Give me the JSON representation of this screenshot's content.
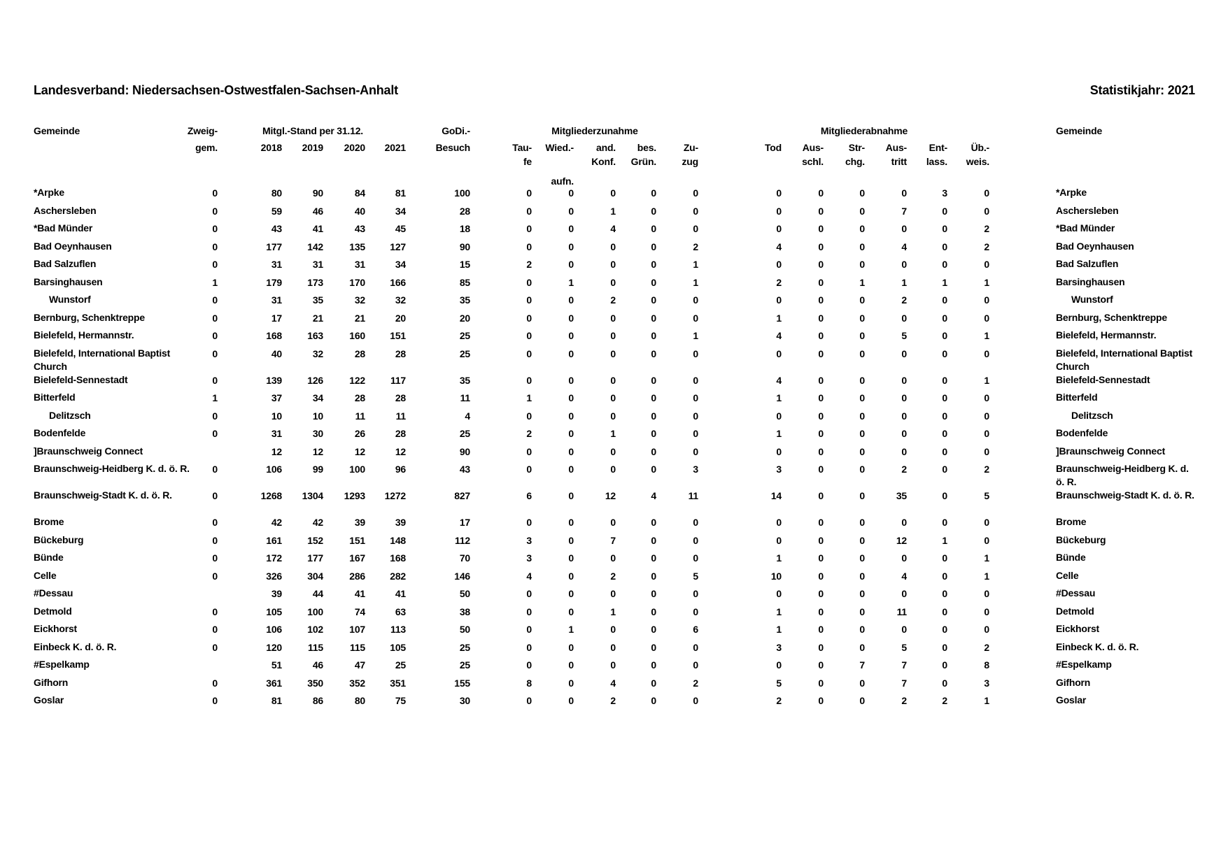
{
  "header": {
    "title": "Landesverband: Niedersachsen-Ostwestfalen-Sachsen-Anhalt",
    "year_label": "Statistikjahr: 2021"
  },
  "columns": {
    "gemeinde": "Gemeinde",
    "zweig": [
      "Zweig-",
      "gem."
    ],
    "stand_group": "Mitgl.-Stand per 31.12.",
    "years": [
      "2018",
      "2019",
      "2020",
      "2021"
    ],
    "godi": [
      "GoDi.-",
      "Besuch"
    ],
    "zunahme_group": "Mitgliederzunahme",
    "zunahme": [
      [
        "Tau-",
        "fe"
      ],
      [
        "Wied.-",
        "",
        "aufn."
      ],
      [
        "and.",
        "Konf."
      ],
      [
        "bes.",
        "Grün."
      ],
      [
        "Zu-",
        "zug"
      ]
    ],
    "abnahme_group": "Mitgliederabnahme",
    "abnahme": [
      [
        "Tod",
        ""
      ],
      [
        "Aus-",
        "schl."
      ],
      [
        "Str-",
        "chg."
      ],
      [
        "Aus-",
        "tritt"
      ],
      [
        "Ent-",
        "lass."
      ],
      [
        "Üb.-",
        "weis."
      ]
    ],
    "gemeinde_right": "Gemeinde"
  },
  "rows": [
    {
      "name": "*Arpke",
      "values": [
        "0",
        "80",
        "90",
        "84",
        "81",
        "100",
        "0",
        "0",
        "0",
        "0",
        "0",
        "0",
        "0",
        "0",
        "0",
        "3",
        "0"
      ]
    },
    {
      "name": "Aschersleben",
      "values": [
        "0",
        "59",
        "46",
        "40",
        "34",
        "28",
        "0",
        "0",
        "1",
        "0",
        "0",
        "0",
        "0",
        "0",
        "7",
        "0",
        "0"
      ]
    },
    {
      "name": "*Bad Münder",
      "values": [
        "0",
        "43",
        "41",
        "43",
        "45",
        "18",
        "0",
        "0",
        "4",
        "0",
        "0",
        "0",
        "0",
        "0",
        "0",
        "0",
        "2"
      ]
    },
    {
      "name": "Bad Oeynhausen",
      "values": [
        "0",
        "177",
        "142",
        "135",
        "127",
        "90",
        "0",
        "0",
        "0",
        "0",
        "2",
        "4",
        "0",
        "0",
        "4",
        "0",
        "2"
      ]
    },
    {
      "name": "Bad Salzuflen",
      "values": [
        "0",
        "31",
        "31",
        "31",
        "34",
        "15",
        "2",
        "0",
        "0",
        "0",
        "1",
        "0",
        "0",
        "0",
        "0",
        "0",
        "0"
      ]
    },
    {
      "name": "Barsinghausen",
      "values": [
        "1",
        "179",
        "173",
        "170",
        "166",
        "85",
        "0",
        "1",
        "0",
        "0",
        "1",
        "2",
        "0",
        "1",
        "1",
        "1",
        "1"
      ]
    },
    {
      "name": "Wunstorf",
      "branch": true,
      "values": [
        "0",
        "31",
        "35",
        "32",
        "32",
        "35",
        "0",
        "0",
        "2",
        "0",
        "0",
        "0",
        "0",
        "0",
        "2",
        "0",
        "0"
      ]
    },
    {
      "name": "Bernburg, Schenktreppe",
      "values": [
        "0",
        "17",
        "21",
        "21",
        "20",
        "20",
        "0",
        "0",
        "0",
        "0",
        "0",
        "1",
        "0",
        "0",
        "0",
        "0",
        "0"
      ]
    },
    {
      "name": "Bielefeld, Hermannstr.",
      "values": [
        "0",
        "168",
        "163",
        "160",
        "151",
        "25",
        "0",
        "0",
        "0",
        "0",
        "1",
        "4",
        "0",
        "0",
        "5",
        "0",
        "1"
      ]
    },
    {
      "name": "Bielefeld, International Baptist Church",
      "tall": true,
      "values": [
        "0",
        "40",
        "32",
        "28",
        "28",
        "25",
        "0",
        "0",
        "0",
        "0",
        "0",
        "0",
        "0",
        "0",
        "0",
        "0",
        "0"
      ]
    },
    {
      "name": "Bielefeld-Sennestadt",
      "values": [
        "0",
        "139",
        "126",
        "122",
        "117",
        "35",
        "0",
        "0",
        "0",
        "0",
        "0",
        "4",
        "0",
        "0",
        "0",
        "0",
        "1"
      ]
    },
    {
      "name": "Bitterfeld",
      "values": [
        "1",
        "37",
        "34",
        "28",
        "28",
        "11",
        "1",
        "0",
        "0",
        "0",
        "0",
        "1",
        "0",
        "0",
        "0",
        "0",
        "0"
      ]
    },
    {
      "name": "Delitzsch",
      "branch": true,
      "values": [
        "0",
        "10",
        "10",
        "11",
        "11",
        "4",
        "0",
        "0",
        "0",
        "0",
        "0",
        "0",
        "0",
        "0",
        "0",
        "0",
        "0"
      ]
    },
    {
      "name": "Bodenfelde",
      "values": [
        "0",
        "31",
        "30",
        "26",
        "28",
        "25",
        "2",
        "0",
        "1",
        "0",
        "0",
        "1",
        "0",
        "0",
        "0",
        "0",
        "0"
      ]
    },
    {
      "name": "]Braunschweig Connect",
      "values": [
        "",
        "12",
        "12",
        "12",
        "12",
        "90",
        "0",
        "0",
        "0",
        "0",
        "0",
        "0",
        "0",
        "0",
        "0",
        "0",
        "0"
      ]
    },
    {
      "name": "Braunschweig-Heidberg K. d. ö. R.",
      "tall": true,
      "values": [
        "0",
        "106",
        "99",
        "100",
        "96",
        "43",
        "0",
        "0",
        "0",
        "0",
        "3",
        "3",
        "0",
        "0",
        "2",
        "0",
        "2"
      ]
    },
    {
      "name": "Braunschweig-Stadt K. d. ö. R.",
      "tall": true,
      "values": [
        "0",
        "1268",
        "1304",
        "1293",
        "1272",
        "827",
        "6",
        "0",
        "12",
        "4",
        "11",
        "14",
        "0",
        "0",
        "35",
        "0",
        "5"
      ]
    },
    {
      "name": "Brome",
      "values": [
        "0",
        "42",
        "42",
        "39",
        "39",
        "17",
        "0",
        "0",
        "0",
        "0",
        "0",
        "0",
        "0",
        "0",
        "0",
        "0",
        "0"
      ]
    },
    {
      "name": "Bückeburg",
      "values": [
        "0",
        "161",
        "152",
        "151",
        "148",
        "112",
        "3",
        "0",
        "7",
        "0",
        "0",
        "0",
        "0",
        "0",
        "12",
        "1",
        "0"
      ]
    },
    {
      "name": "Bünde",
      "values": [
        "0",
        "172",
        "177",
        "167",
        "168",
        "70",
        "3",
        "0",
        "0",
        "0",
        "0",
        "1",
        "0",
        "0",
        "0",
        "0",
        "1"
      ]
    },
    {
      "name": "Celle",
      "values": [
        "0",
        "326",
        "304",
        "286",
        "282",
        "146",
        "4",
        "0",
        "2",
        "0",
        "5",
        "10",
        "0",
        "0",
        "4",
        "0",
        "1"
      ]
    },
    {
      "name": "#Dessau",
      "values": [
        "",
        "39",
        "44",
        "41",
        "41",
        "50",
        "0",
        "0",
        "0",
        "0",
        "0",
        "0",
        "0",
        "0",
        "0",
        "0",
        "0"
      ]
    },
    {
      "name": "Detmold",
      "values": [
        "0",
        "105",
        "100",
        "74",
        "63",
        "38",
        "0",
        "0",
        "1",
        "0",
        "0",
        "1",
        "0",
        "0",
        "11",
        "0",
        "0"
      ]
    },
    {
      "name": "Eickhorst",
      "values": [
        "0",
        "106",
        "102",
        "107",
        "113",
        "50",
        "0",
        "1",
        "0",
        "0",
        "6",
        "1",
        "0",
        "0",
        "0",
        "0",
        "0"
      ]
    },
    {
      "name": "Einbeck K. d. ö. R.",
      "values": [
        "0",
        "120",
        "115",
        "115",
        "105",
        "25",
        "0",
        "0",
        "0",
        "0",
        "0",
        "3",
        "0",
        "0",
        "5",
        "0",
        "2"
      ]
    },
    {
      "name": "#Espelkamp",
      "values": [
        "",
        "51",
        "46",
        "47",
        "25",
        "25",
        "0",
        "0",
        "0",
        "0",
        "0",
        "0",
        "0",
        "7",
        "7",
        "0",
        "8"
      ]
    },
    {
      "name": "Gifhorn",
      "values": [
        "0",
        "361",
        "350",
        "352",
        "351",
        "155",
        "8",
        "0",
        "4",
        "0",
        "2",
        "5",
        "0",
        "0",
        "7",
        "0",
        "3"
      ]
    },
    {
      "name": "Goslar",
      "values": [
        "0",
        "81",
        "86",
        "80",
        "75",
        "30",
        "0",
        "0",
        "2",
        "0",
        "0",
        "2",
        "0",
        "0",
        "2",
        "2",
        "1"
      ]
    }
  ]
}
